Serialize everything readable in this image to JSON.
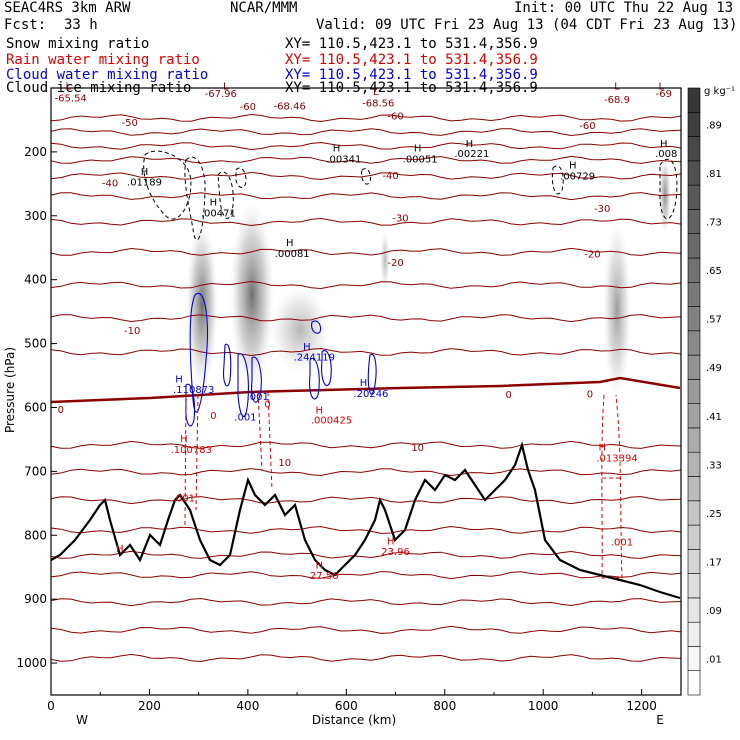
{
  "header": {
    "model": "SEAC4RS   3km ARW",
    "org": "NCAR/MMM",
    "init": "Init: 00 UTC Thu 22 Aug 13",
    "fcst_label": "Fcst:",
    "fcst_value": "33 h",
    "valid": "Valid: 09 UTC Fri 23 Aug 13 (04 CDT Fri 23 Aug 13)"
  },
  "legend": [
    {
      "name": "Snow mixing ratio",
      "xy": "XY= 110.5,423.1 to 531.4,356.9",
      "color": "#000000"
    },
    {
      "name": "Rain water mixing ratio",
      "xy": "XY= 110.5,423.1 to 531.4,356.9",
      "color": "#dd0000"
    },
    {
      "name": "Cloud water mixing ratio",
      "xy": "XY= 110.5,423.1 to 531.4,356.9",
      "color": "#0000dd"
    },
    {
      "name": "Cloud ice mixing ratio",
      "xy": "XY= 110.5,423.1 to 531.4,356.9",
      "color": "#000000"
    }
  ],
  "colors": {
    "temperature": "#8b0000",
    "rain": "#dd0000",
    "cloud_water": "#0000dd",
    "snow": "#000000",
    "terrain": "#000000"
  },
  "chart_data": {
    "type": "cross-section",
    "xlabel": "Distance (km)",
    "ylabel": "Pressure (hPa)",
    "xlim": [
      0,
      1280
    ],
    "ylim": [
      1050,
      100
    ],
    "x_ticks": [
      0,
      200,
      400,
      600,
      800,
      1000,
      1200
    ],
    "y_ticks": [
      200,
      300,
      400,
      500,
      600,
      700,
      800,
      900,
      1000
    ],
    "x_end_labels": {
      "left": "W",
      "right": "E"
    },
    "colorbar": {
      "unit": "g kg⁻¹",
      "labels": [
        ".01",
        ".09",
        ".17",
        ".25",
        ".33",
        ".41",
        ".49",
        ".57",
        ".65",
        ".73",
        ".81",
        ".89"
      ]
    },
    "temperature_contours": [
      {
        "value": "-60",
        "x": 400,
        "p": 128
      },
      {
        "value": "-60",
        "x": 700,
        "p": 143
      },
      {
        "value": "-60",
        "x": 1090,
        "p": 158
      },
      {
        "value": "-50",
        "x": 160,
        "p": 153
      },
      {
        "value": "-40",
        "x": 120,
        "p": 248
      },
      {
        "value": "-40",
        "x": 690,
        "p": 236
      },
      {
        "value": "-30",
        "x": 710,
        "p": 303
      },
      {
        "value": "-30",
        "x": 1120,
        "p": 288
      },
      {
        "value": "-20",
        "x": 700,
        "p": 372
      },
      {
        "value": "-20",
        "x": 1100,
        "p": 359
      },
      {
        "value": "-10",
        "x": 165,
        "p": 479
      },
      {
        "value": "0",
        "x": 20,
        "p": 602
      },
      {
        "value": "0",
        "x": 930,
        "p": 579
      },
      {
        "value": "0",
        "x": 1095,
        "p": 578
      },
      {
        "value": "10",
        "x": 475,
        "p": 685
      },
      {
        "value": "10",
        "x": 745,
        "p": 662
      }
    ],
    "extrema": [
      {
        "text": "L",
        "x": 35,
        "p": 96,
        "color": "#8b0000"
      },
      {
        "text": "-65.54",
        "x": 40,
        "p": 115,
        "color": "#8b0000"
      },
      {
        "text": "L",
        "x": 355,
        "p": 96,
        "color": "#8b0000"
      },
      {
        "text": "-67.96",
        "x": 345,
        "p": 108,
        "color": "#8b0000"
      },
      {
        "text": "-68.46",
        "x": 485,
        "p": 127,
        "color": "#8b0000"
      },
      {
        "text": "L",
        "x": 660,
        "p": 105,
        "color": "#8b0000"
      },
      {
        "text": "-68.56",
        "x": 665,
        "p": 123,
        "color": "#8b0000"
      },
      {
        "text": "L",
        "x": 1150,
        "p": 96,
        "color": "#8b0000"
      },
      {
        "text": "-68.9",
        "x": 1150,
        "p": 117,
        "color": "#8b0000"
      },
      {
        "text": "L",
        "x": 1240,
        "p": 96,
        "color": "#8b0000"
      },
      {
        "text": "-69",
        "x": 1245,
        "p": 108,
        "color": "#8b0000"
      },
      {
        "text": "H",
        "x": 190,
        "p": 230,
        "color": "#000000"
      },
      {
        "text": ".01189",
        "x": 190,
        "p": 246,
        "color": "#000000"
      },
      {
        "text": "H",
        "x": 330,
        "p": 278,
        "color": "#000000"
      },
      {
        "text": ".00471",
        "x": 340,
        "p": 295,
        "color": "#000000"
      },
      {
        "text": "H",
        "x": 485,
        "p": 341,
        "color": "#000000"
      },
      {
        "text": ".00081",
        "x": 490,
        "p": 358,
        "color": "#000000"
      },
      {
        "text": "H",
        "x": 580,
        "p": 193,
        "color": "#000000"
      },
      {
        "text": ".00341",
        "x": 595,
        "p": 210,
        "color": "#000000"
      },
      {
        "text": "H",
        "x": 745,
        "p": 193,
        "color": "#000000"
      },
      {
        "text": ".00051",
        "x": 750,
        "p": 210,
        "color": "#000000"
      },
      {
        "text": "H",
        "x": 850,
        "p": 186,
        "color": "#000000"
      },
      {
        "text": ".00221",
        "x": 855,
        "p": 202,
        "color": "#000000"
      },
      {
        "text": "H",
        "x": 1060,
        "p": 220,
        "color": "#000000"
      },
      {
        "text": ".00729",
        "x": 1070,
        "p": 237,
        "color": "#000000"
      },
      {
        "text": "H",
        "x": 1245,
        "p": 186,
        "color": "#000000"
      },
      {
        "text": ".008",
        "x": 1250,
        "p": 202,
        "color": "#000000"
      },
      {
        "text": "H",
        "x": 260,
        "p": 555,
        "color": "#0000dd"
      },
      {
        "text": ".110873",
        "x": 290,
        "p": 571,
        "color": "#0000dd"
      },
      {
        "text": "H",
        "x": 520,
        "p": 504,
        "color": "#0000dd"
      },
      {
        "text": ".244119",
        "x": 535,
        "p": 520,
        "color": "#0000dd"
      },
      {
        "text": "H",
        "x": 635,
        "p": 560,
        "color": "#0000dd"
      },
      {
        "text": ".20246",
        "x": 650,
        "p": 577,
        "color": "#0000dd"
      },
      {
        "text": ".001",
        "x": 420,
        "p": 582,
        "color": "#0000dd"
      },
      {
        "text": ".001",
        "x": 395,
        "p": 614,
        "color": "#0000dd"
      },
      {
        "text": "H",
        "x": 270,
        "p": 648,
        "color": "#dd0000"
      },
      {
        "text": ".100783",
        "x": 285,
        "p": 665,
        "color": "#dd0000"
      },
      {
        "text": "H",
        "x": 545,
        "p": 603,
        "color": "#dd0000"
      },
      {
        "text": ".000425",
        "x": 570,
        "p": 619,
        "color": "#dd0000"
      },
      {
        "text": "H",
        "x": 1120,
        "p": 661,
        "color": "#dd0000"
      },
      {
        "text": ".013394",
        "x": 1150,
        "p": 678,
        "color": "#dd0000"
      },
      {
        "text": ".001",
        "x": 270,
        "p": 741,
        "color": "#dd0000"
      },
      {
        "text": ".001",
        "x": 1160,
        "p": 810,
        "color": "#dd0000"
      },
      {
        "text": "H",
        "x": 545,
        "p": 846,
        "color": "#dd0000"
      },
      {
        "text": "27.56",
        "x": 555,
        "p": 862,
        "color": "#dd0000"
      },
      {
        "text": "H",
        "x": 690,
        "p": 808,
        "color": "#dd0000"
      },
      {
        "text": "23.96",
        "x": 700,
        "p": 825,
        "color": "#dd0000"
      },
      {
        "text": "H",
        "x": 140,
        "p": 820,
        "color": "#dd0000"
      },
      {
        "text": "0",
        "x": 330,
        "p": 612,
        "color": "#dd0000"
      },
      {
        "text": "0",
        "x": 440,
        "p": 594,
        "color": "#dd0000"
      }
    ]
  }
}
